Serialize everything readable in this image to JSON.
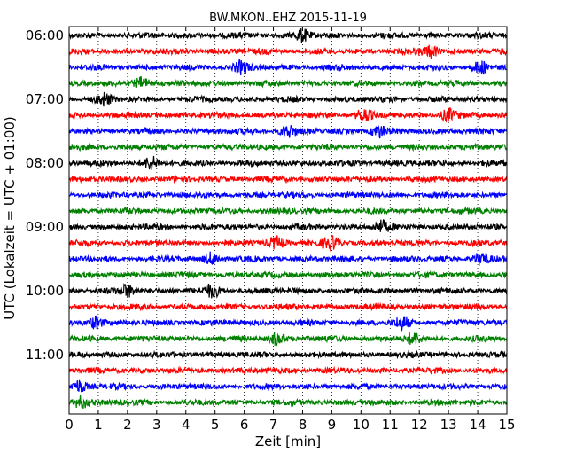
{
  "chart_data": {
    "type": "line",
    "title": "BW.MKON..EHZ 2015-11-19",
    "xlabel": "Zeit  [min]",
    "ylabel": "UTC (Lokalzeit = UTC + 01:00)",
    "xlim": [
      0,
      15
    ],
    "x_ticks": [
      "0",
      "1",
      "2",
      "3",
      "4",
      "5",
      "6",
      "7",
      "8",
      "9",
      "10",
      "11",
      "12",
      "13",
      "14",
      "15"
    ],
    "y_tick_labels": [
      "06:00",
      "07:00",
      "08:00",
      "09:00",
      "10:00",
      "11:00"
    ],
    "trace_start_times": [
      "06:00",
      "06:15",
      "06:30",
      "06:45",
      "07:00",
      "07:15",
      "07:30",
      "07:45",
      "08:00",
      "08:15",
      "08:30",
      "08:45",
      "09:00",
      "09:15",
      "09:30",
      "09:45",
      "10:00",
      "10:15",
      "10:30",
      "10:45",
      "11:00",
      "11:15",
      "11:30",
      "11:45"
    ],
    "trace_colors": [
      "#000000",
      "#ff0000",
      "#0000ff",
      "#008000"
    ],
    "trace_duration_min": 15,
    "grid": true,
    "grid_axis": "x",
    "events": [
      {
        "trace": 0,
        "t": 8.0
      },
      {
        "trace": 1,
        "t": 12.4
      },
      {
        "trace": 2,
        "t": 5.9
      },
      {
        "trace": 2,
        "t": 14.1
      },
      {
        "trace": 3,
        "t": 2.5
      },
      {
        "trace": 4,
        "t": 1.2
      },
      {
        "trace": 5,
        "t": 10.1
      },
      {
        "trace": 5,
        "t": 13.0
      },
      {
        "trace": 6,
        "t": 7.5
      },
      {
        "trace": 6,
        "t": 10.6
      },
      {
        "trace": 8,
        "t": 2.8
      },
      {
        "trace": 12,
        "t": 10.7
      },
      {
        "trace": 13,
        "t": 9.0
      },
      {
        "trace": 13,
        "t": 7.1
      },
      {
        "trace": 14,
        "t": 4.9
      },
      {
        "trace": 14,
        "t": 14.1
      },
      {
        "trace": 16,
        "t": 2.0
      },
      {
        "trace": 16,
        "t": 4.9
      },
      {
        "trace": 18,
        "t": 0.9
      },
      {
        "trace": 18,
        "t": 11.4
      },
      {
        "trace": 19,
        "t": 7.1
      },
      {
        "trace": 19,
        "t": 11.8
      },
      {
        "trace": 22,
        "t": 0.35
      },
      {
        "trace": 23,
        "t": 0.4
      }
    ]
  },
  "colors": {
    "axes": "#000000",
    "grid": "#000000",
    "background": "#ffffff"
  }
}
